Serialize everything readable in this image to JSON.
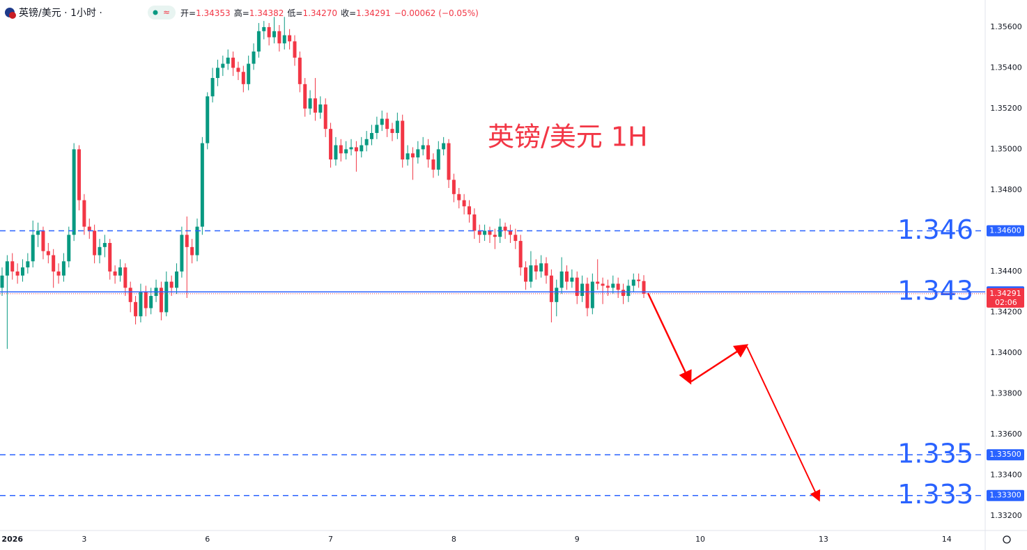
{
  "chart_data": {
    "type": "candlestick",
    "header": {
      "symbol": "英镑/美元 · 1小时 ·",
      "open_label": "开=",
      "open": "1.34353",
      "high_label": "高=",
      "high": "1.34382",
      "low_label": "低=",
      "low": "1.34270",
      "close_label": "收=",
      "close": "1.34291",
      "change": "−0.00062 (−0.05%)"
    },
    "annotation": "英镑/美元 1H",
    "up_color": "#089981",
    "down_color": "#f23645",
    "level_color": "#2962ff",
    "ylim": [
      1.33135,
      1.35733
    ],
    "yticks": [
      {
        "value": 1.356,
        "label": "1.35600"
      },
      {
        "value": 1.354,
        "label": "1.35400"
      },
      {
        "value": 1.352,
        "label": "1.35200"
      },
      {
        "value": 1.35,
        "label": "1.35000"
      },
      {
        "value": 1.348,
        "label": "1.34800"
      },
      {
        "value": 1.344,
        "label": "1.34400"
      },
      {
        "value": 1.342,
        "label": "1.34200"
      },
      {
        "value": 1.34,
        "label": "1.34000"
      },
      {
        "value": 1.338,
        "label": "1.33800"
      },
      {
        "value": 1.336,
        "label": "1.33600"
      },
      {
        "value": 1.334,
        "label": "1.33400"
      },
      {
        "value": 1.332,
        "label": "1.33200"
      }
    ],
    "xlim": [
      0,
      191.5
    ],
    "xticks": [
      {
        "value": 2,
        "label": "2026"
      },
      {
        "value": 16,
        "label": "3"
      },
      {
        "value": 40,
        "label": "6"
      },
      {
        "value": 64,
        "label": "7"
      },
      {
        "value": 88,
        "label": "8"
      },
      {
        "value": 112,
        "label": "9"
      },
      {
        "value": 136,
        "label": "10"
      },
      {
        "value": 160,
        "label": "13"
      },
      {
        "value": 184,
        "label": "14"
      }
    ],
    "levels": [
      {
        "value": 1.346,
        "label": "1.346",
        "axis_label": "1.34600",
        "style": "dashed"
      },
      {
        "value": 1.343,
        "label": "1.343",
        "axis_label": "1.34300",
        "style": "solid"
      },
      {
        "value": 1.335,
        "label": "1.335",
        "axis_label": "1.33500",
        "style": "dashed"
      },
      {
        "value": 1.333,
        "label": "1.333",
        "axis_label": "1.33300",
        "style": "dashed"
      }
    ],
    "last_price": {
      "value": 1.34291,
      "label": "1.34291",
      "countdown": "02:06"
    },
    "ohlc": [
      [
        1.3432,
        1.3442,
        1.3428,
        1.3438
      ],
      [
        1.3438,
        1.3448,
        1.3402,
        1.3445
      ],
      [
        1.3445,
        1.3449,
        1.3436,
        1.344
      ],
      [
        1.344,
        1.3444,
        1.3434,
        1.3438
      ],
      [
        1.3438,
        1.3446,
        1.3435,
        1.3442
      ],
      [
        1.3442,
        1.3449,
        1.3439,
        1.3445
      ],
      [
        1.3445,
        1.3465,
        1.3442,
        1.3458
      ],
      [
        1.3458,
        1.3464,
        1.3452,
        1.346
      ],
      [
        1.346,
        1.3462,
        1.3446,
        1.345
      ],
      [
        1.345,
        1.3454,
        1.3444,
        1.3448
      ],
      [
        1.3448,
        1.3451,
        1.3432,
        1.344
      ],
      [
        1.344,
        1.3444,
        1.3434,
        1.3438
      ],
      [
        1.3438,
        1.3449,
        1.3435,
        1.3445
      ],
      [
        1.3445,
        1.3462,
        1.3442,
        1.3458
      ],
      [
        1.3458,
        1.3503,
        1.3455,
        1.35
      ],
      [
        1.35,
        1.3502,
        1.347,
        1.3475
      ],
      [
        1.3475,
        1.3478,
        1.3458,
        1.3462
      ],
      [
        1.3462,
        1.3466,
        1.3456,
        1.346
      ],
      [
        1.346,
        1.3463,
        1.3444,
        1.3448
      ],
      [
        1.3448,
        1.3456,
        1.3444,
        1.3452
      ],
      [
        1.3452,
        1.3458,
        1.3447,
        1.3454
      ],
      [
        1.3454,
        1.3456,
        1.3436,
        1.344
      ],
      [
        1.344,
        1.3443,
        1.3434,
        1.3438
      ],
      [
        1.3438,
        1.3446,
        1.3435,
        1.3442
      ],
      [
        1.3442,
        1.3444,
        1.3428,
        1.3432
      ],
      [
        1.3432,
        1.3435,
        1.342,
        1.3425
      ],
      [
        1.3425,
        1.3428,
        1.3414,
        1.3418
      ],
      [
        1.3418,
        1.3434,
        1.3415,
        1.343
      ],
      [
        1.343,
        1.3433,
        1.3418,
        1.3422
      ],
      [
        1.3422,
        1.3432,
        1.3419,
        1.3428
      ],
      [
        1.3428,
        1.3436,
        1.3425,
        1.3432
      ],
      [
        1.3432,
        1.3435,
        1.3416,
        1.342
      ],
      [
        1.342,
        1.344,
        1.3418,
        1.3435
      ],
      [
        1.3435,
        1.3438,
        1.3428,
        1.3432
      ],
      [
        1.3432,
        1.3444,
        1.3429,
        1.344
      ],
      [
        1.344,
        1.3462,
        1.3437,
        1.3458
      ],
      [
        1.3458,
        1.3467,
        1.3427,
        1.3452
      ],
      [
        1.3452,
        1.3456,
        1.3444,
        1.3448
      ],
      [
        1.3448,
        1.3466,
        1.3445,
        1.3462
      ],
      [
        1.3462,
        1.3506,
        1.3458,
        1.3503
      ],
      [
        1.3503,
        1.3528,
        1.35,
        1.3526
      ],
      [
        1.3526,
        1.354,
        1.3523,
        1.3535
      ],
      [
        1.3535,
        1.3544,
        1.3531,
        1.354
      ],
      [
        1.354,
        1.3546,
        1.3536,
        1.3542
      ],
      [
        1.3542,
        1.3549,
        1.3539,
        1.3545
      ],
      [
        1.3545,
        1.3548,
        1.3536,
        1.354
      ],
      [
        1.354,
        1.3543,
        1.3534,
        1.3538
      ],
      [
        1.3538,
        1.3541,
        1.3528,
        1.3532
      ],
      [
        1.3532,
        1.3546,
        1.3529,
        1.3542
      ],
      [
        1.3542,
        1.3552,
        1.3539,
        1.3548
      ],
      [
        1.3548,
        1.3562,
        1.3545,
        1.3558
      ],
      [
        1.3558,
        1.3563,
        1.3554,
        1.356
      ],
      [
        1.356,
        1.3562,
        1.3551,
        1.3555
      ],
      [
        1.3555,
        1.3565,
        1.3552,
        1.3558
      ],
      [
        1.3558,
        1.3561,
        1.3548,
        1.3552
      ],
      [
        1.3552,
        1.3565,
        1.3549,
        1.3556
      ],
      [
        1.3556,
        1.3559,
        1.3549,
        1.3553
      ],
      [
        1.3553,
        1.3556,
        1.3541,
        1.3545
      ],
      [
        1.3545,
        1.3548,
        1.3528,
        1.3532
      ],
      [
        1.3532,
        1.3535,
        1.3516,
        1.352
      ],
      [
        1.352,
        1.3529,
        1.3517,
        1.3525
      ],
      [
        1.3525,
        1.3535,
        1.3514,
        1.3518
      ],
      [
        1.3518,
        1.3526,
        1.3515,
        1.3522
      ],
      [
        1.3522,
        1.3525,
        1.3506,
        1.351
      ],
      [
        1.351,
        1.3513,
        1.3491,
        1.3495
      ],
      [
        1.3495,
        1.3506,
        1.3492,
        1.3502
      ],
      [
        1.3502,
        1.3505,
        1.3494,
        1.3498
      ],
      [
        1.3498,
        1.3504,
        1.3495,
        1.35
      ],
      [
        1.35,
        1.3505,
        1.3497,
        1.3501
      ],
      [
        1.3501,
        1.3504,
        1.3489,
        1.3499
      ],
      [
        1.3499,
        1.3506,
        1.3496,
        1.3502
      ],
      [
        1.3502,
        1.3509,
        1.3499,
        1.3505
      ],
      [
        1.3505,
        1.3512,
        1.3502,
        1.3508
      ],
      [
        1.3508,
        1.3516,
        1.3505,
        1.3512
      ],
      [
        1.3512,
        1.3519,
        1.3509,
        1.3515
      ],
      [
        1.3515,
        1.3518,
        1.3506,
        1.351
      ],
      [
        1.351,
        1.3513,
        1.3504,
        1.3508
      ],
      [
        1.3508,
        1.3518,
        1.3505,
        1.3514
      ],
      [
        1.3514,
        1.3517,
        1.3491,
        1.3495
      ],
      [
        1.3495,
        1.3502,
        1.3492,
        1.3498
      ],
      [
        1.3498,
        1.3501,
        1.3485,
        1.3496
      ],
      [
        1.3496,
        1.3504,
        1.3493,
        1.35
      ],
      [
        1.35,
        1.3506,
        1.3497,
        1.3502
      ],
      [
        1.3502,
        1.3505,
        1.3491,
        1.3495
      ],
      [
        1.3495,
        1.3498,
        1.3486,
        1.349
      ],
      [
        1.349,
        1.3504,
        1.3487,
        1.35
      ],
      [
        1.35,
        1.3506,
        1.3497,
        1.3503
      ],
      [
        1.3503,
        1.3505,
        1.3481,
        1.3485
      ],
      [
        1.3485,
        1.3488,
        1.3474,
        1.3478
      ],
      [
        1.3478,
        1.3481,
        1.3471,
        1.3475
      ],
      [
        1.3475,
        1.3478,
        1.3468,
        1.3472
      ],
      [
        1.3472,
        1.3475,
        1.3464,
        1.3468
      ],
      [
        1.3468,
        1.3471,
        1.3456,
        1.346
      ],
      [
        1.346,
        1.3463,
        1.3454,
        1.3458
      ],
      [
        1.3458,
        1.3463,
        1.3455,
        1.346
      ],
      [
        1.346,
        1.3462,
        1.3454,
        1.3458
      ],
      [
        1.3458,
        1.3461,
        1.3451,
        1.3457
      ],
      [
        1.3457,
        1.3466,
        1.3454,
        1.3462
      ],
      [
        1.3462,
        1.3464,
        1.3456,
        1.346
      ],
      [
        1.346,
        1.3463,
        1.3454,
        1.3458
      ],
      [
        1.3458,
        1.3461,
        1.3451,
        1.3455
      ],
      [
        1.3455,
        1.3458,
        1.3438,
        1.3442
      ],
      [
        1.3442,
        1.3445,
        1.3431,
        1.3435
      ],
      [
        1.3435,
        1.345,
        1.3432,
        1.3443
      ],
      [
        1.3443,
        1.3446,
        1.3436,
        1.344
      ],
      [
        1.344,
        1.3448,
        1.3437,
        1.3444
      ],
      [
        1.3444,
        1.3447,
        1.3434,
        1.3438
      ],
      [
        1.3438,
        1.3441,
        1.3415,
        1.3425
      ],
      [
        1.3425,
        1.3436,
        1.3418,
        1.3432
      ],
      [
        1.3432,
        1.3447,
        1.3429,
        1.344
      ],
      [
        1.344,
        1.3443,
        1.3431,
        1.3435
      ],
      [
        1.3435,
        1.3441,
        1.3432,
        1.3437
      ],
      [
        1.3437,
        1.344,
        1.3424,
        1.3428
      ],
      [
        1.3428,
        1.3438,
        1.3425,
        1.3434
      ],
      [
        1.3434,
        1.3437,
        1.3418,
        1.3422
      ],
      [
        1.3422,
        1.3439,
        1.3419,
        1.3435
      ],
      [
        1.3435,
        1.3446,
        1.3431,
        1.3434
      ],
      [
        1.3434,
        1.3437,
        1.3424,
        1.3433
      ],
      [
        1.3433,
        1.3436,
        1.3428,
        1.3432
      ],
      [
        1.3432,
        1.3438,
        1.3429,
        1.3434
      ],
      [
        1.3434,
        1.3437,
        1.3427,
        1.3431
      ],
      [
        1.3431,
        1.3434,
        1.3424,
        1.3428
      ],
      [
        1.3428,
        1.3436,
        1.3425,
        1.3433
      ],
      [
        1.3433,
        1.3439,
        1.343,
        1.3436
      ],
      [
        1.3436,
        1.3439,
        1.3432,
        1.34353
      ],
      [
        1.34353,
        1.34382,
        1.3427,
        1.34291
      ]
    ]
  }
}
